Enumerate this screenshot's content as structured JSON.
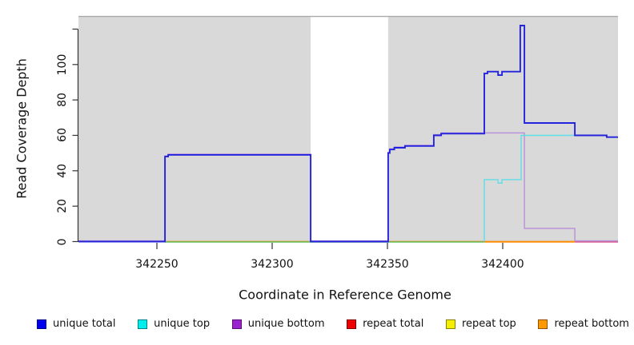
{
  "chart_data": {
    "type": "line",
    "title": "",
    "xlabel": "Coordinate in Reference Genome",
    "ylabel": "Read Coverage Depth",
    "xlim": [
      342216,
      342450
    ],
    "ylim": [
      0,
      123
    ],
    "grid": false,
    "legend_position": "bottom",
    "xticks": [
      {
        "value": 342250,
        "label": "342250"
      },
      {
        "value": 342300,
        "label": "342300"
      },
      {
        "value": 342350,
        "label": "342350"
      },
      {
        "value": 342400,
        "label": "342400"
      }
    ],
    "yticks": [
      {
        "value": 0,
        "label": "0"
      },
      {
        "value": 20,
        "label": "20"
      },
      {
        "value": 40,
        "label": "40"
      },
      {
        "value": 60,
        "label": "60"
      },
      {
        "value": 80,
        "label": "80"
      },
      {
        "value": 100,
        "label": "100"
      },
      {
        "value": 120,
        "label": ""
      }
    ],
    "background_color": "#d9d9d9",
    "top_border_color": "#a9a9a9",
    "background_regions": [
      {
        "x0": 342216,
        "x1": 342316.7,
        "note": "gray highlight left of gap"
      },
      {
        "x0": 342350.3,
        "x1": 342450,
        "note": "gray highlight right of gap"
      }
    ],
    "zero_segments": [
      {
        "x0": 342253.5,
        "x1": 342392,
        "color": "#5cbf5c",
        "note": "unique top + repeat lines at 0 (blended green)"
      },
      {
        "x0": 342392,
        "x1": 342431.3,
        "color": "#ff8c00",
        "note": "repeat bottom at 0 (orange)"
      },
      {
        "x0": 342431.3,
        "x1": 342450,
        "color": "#d4569b",
        "note": "unique bottom + repeat total at 0 (blended pink)"
      }
    ],
    "series": [
      {
        "name": "repeat total",
        "color": "#ee0000",
        "width": 1.3,
        "z": 1,
        "points": [
          [
            342216,
            0
          ],
          [
            342450,
            0
          ]
        ]
      },
      {
        "name": "repeat top",
        "color": "#f2e800",
        "width": 1.3,
        "z": 1,
        "points": [
          [
            342216,
            0
          ],
          [
            342450,
            0
          ]
        ]
      },
      {
        "name": "repeat bottom",
        "color": "#ff8c00",
        "width": 1.3,
        "z": 1,
        "points": [
          [
            342216,
            0
          ],
          [
            342450,
            0
          ]
        ]
      },
      {
        "name": "unique bottom",
        "color": "#b98fd9",
        "width": 1.4,
        "z": 3,
        "points": [
          [
            342216,
            0
          ],
          [
            342253.5,
            0
          ],
          [
            342253.5,
            48
          ],
          [
            342254.9,
            48
          ],
          [
            342254.9,
            49
          ],
          [
            342316.7,
            49
          ],
          [
            342316.7,
            0
          ],
          [
            342350.3,
            0
          ],
          [
            342350.3,
            50
          ],
          [
            342351,
            50
          ],
          [
            342351,
            52
          ],
          [
            342353,
            52
          ],
          [
            342353,
            53
          ],
          [
            342357.6,
            53
          ],
          [
            342357.6,
            54
          ],
          [
            342370.1,
            54
          ],
          [
            342370.1,
            60
          ],
          [
            342373.3,
            60
          ],
          [
            342373.3,
            61
          ],
          [
            342409.4,
            61
          ],
          [
            342409.4,
            7
          ],
          [
            342431.3,
            7
          ],
          [
            342431.3,
            0
          ],
          [
            342450,
            0
          ]
        ]
      },
      {
        "name": "unique top",
        "color": "#5fdde6",
        "width": 1.4,
        "z": 4,
        "points": [
          [
            342392,
            0
          ],
          [
            342392,
            35
          ],
          [
            342398,
            35
          ],
          [
            342398,
            33
          ],
          [
            342399.7,
            33
          ],
          [
            342399.7,
            35
          ],
          [
            342408,
            35
          ],
          [
            342408,
            60
          ],
          [
            342445.1,
            60
          ],
          [
            342445.1,
            59
          ],
          [
            342450,
            59
          ]
        ]
      },
      {
        "name": "unique total",
        "color": "#2323dd",
        "width": 1.9,
        "z": 5,
        "points": [
          [
            342216,
            0
          ],
          [
            342253.5,
            0
          ],
          [
            342253.5,
            48
          ],
          [
            342254.9,
            48
          ],
          [
            342254.9,
            49
          ],
          [
            342316.7,
            49
          ],
          [
            342316.7,
            0
          ],
          [
            342350.3,
            0
          ],
          [
            342350.3,
            50
          ],
          [
            342351,
            50
          ],
          [
            342351,
            52
          ],
          [
            342353,
            52
          ],
          [
            342353,
            53
          ],
          [
            342357.6,
            53
          ],
          [
            342357.6,
            54
          ],
          [
            342370.1,
            54
          ],
          [
            342370.1,
            60
          ],
          [
            342373.3,
            60
          ],
          [
            342373.3,
            61
          ],
          [
            342392,
            61
          ],
          [
            342392,
            95
          ],
          [
            342393.4,
            95
          ],
          [
            342393.4,
            96
          ],
          [
            342398,
            96
          ],
          [
            342398,
            94
          ],
          [
            342399.7,
            94
          ],
          [
            342399.7,
            96
          ],
          [
            342407.6,
            96
          ],
          [
            342407.6,
            122
          ],
          [
            342409.4,
            122
          ],
          [
            342409.4,
            67
          ],
          [
            342431.3,
            67
          ],
          [
            342431.3,
            60
          ],
          [
            342445.1,
            60
          ],
          [
            342445.1,
            59
          ],
          [
            342450,
            59
          ]
        ]
      }
    ],
    "legend": [
      {
        "label": "unique total",
        "color": "#0000ee"
      },
      {
        "label": "unique top",
        "color": "#00eeee"
      },
      {
        "label": "unique bottom",
        "color": "#9a22d0"
      },
      {
        "label": "repeat total",
        "color": "#ee0000"
      },
      {
        "label": "repeat top",
        "color": "#f5ee00"
      },
      {
        "label": "repeat bottom",
        "color": "#ff9900"
      }
    ]
  }
}
